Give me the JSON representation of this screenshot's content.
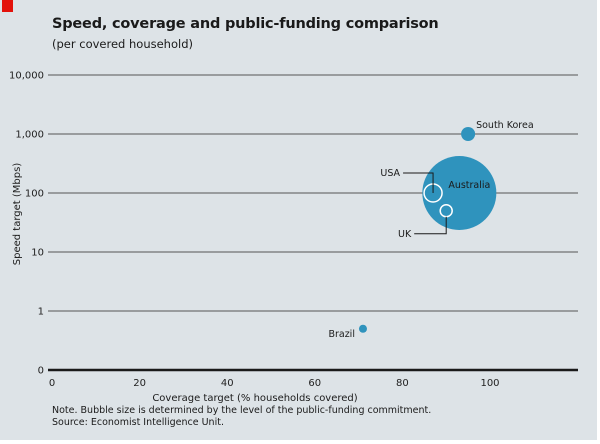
{
  "colors": {
    "background": "#dde3e7",
    "accent": "#e3120b",
    "bubble": "#2f93bd",
    "gridline": "#555555",
    "baseline": "#1a1a1a",
    "inner_ring": "#ffffff"
  },
  "chart_data": {
    "type": "scatter",
    "subtype": "bubble",
    "title": "Speed, coverage and public-funding comparison",
    "subtitle": "(per covered household)",
    "xlabel": "Coverage target (% households covered)",
    "ylabel": "Speed target (Mbps)",
    "xlim": [
      0,
      120
    ],
    "x_ticks": [
      0,
      20,
      40,
      60,
      80,
      100
    ],
    "x_tick_labels": [
      "0",
      "20",
      "40",
      "60",
      "80",
      "100"
    ],
    "y_scale": "log",
    "y_ticks": [
      0,
      1,
      10,
      100,
      1000,
      10000
    ],
    "y_tick_labels": [
      "0",
      "1",
      "10",
      "100",
      "1,000",
      "10,000"
    ],
    "grid": true,
    "size_encoding": "public-funding commitment (relative)",
    "points": [
      {
        "name": "South Korea",
        "x": 95,
        "y": 1000,
        "size": 7,
        "style": "filled"
      },
      {
        "name": "Australia",
        "x": 93,
        "y": 100,
        "size": 37,
        "style": "filled"
      },
      {
        "name": "USA",
        "x": 87,
        "y": 100,
        "size": 9,
        "style": "outline"
      },
      {
        "name": "UK",
        "x": 90,
        "y": 50,
        "size": 6,
        "style": "outline"
      },
      {
        "name": "Brazil",
        "x": 71,
        "y": 0.5,
        "size": 4,
        "style": "filled"
      }
    ],
    "note": "Note. Bubble size is determined by the level of the public-funding commitment.",
    "source": "Source: Economist Intelligence Unit."
  }
}
